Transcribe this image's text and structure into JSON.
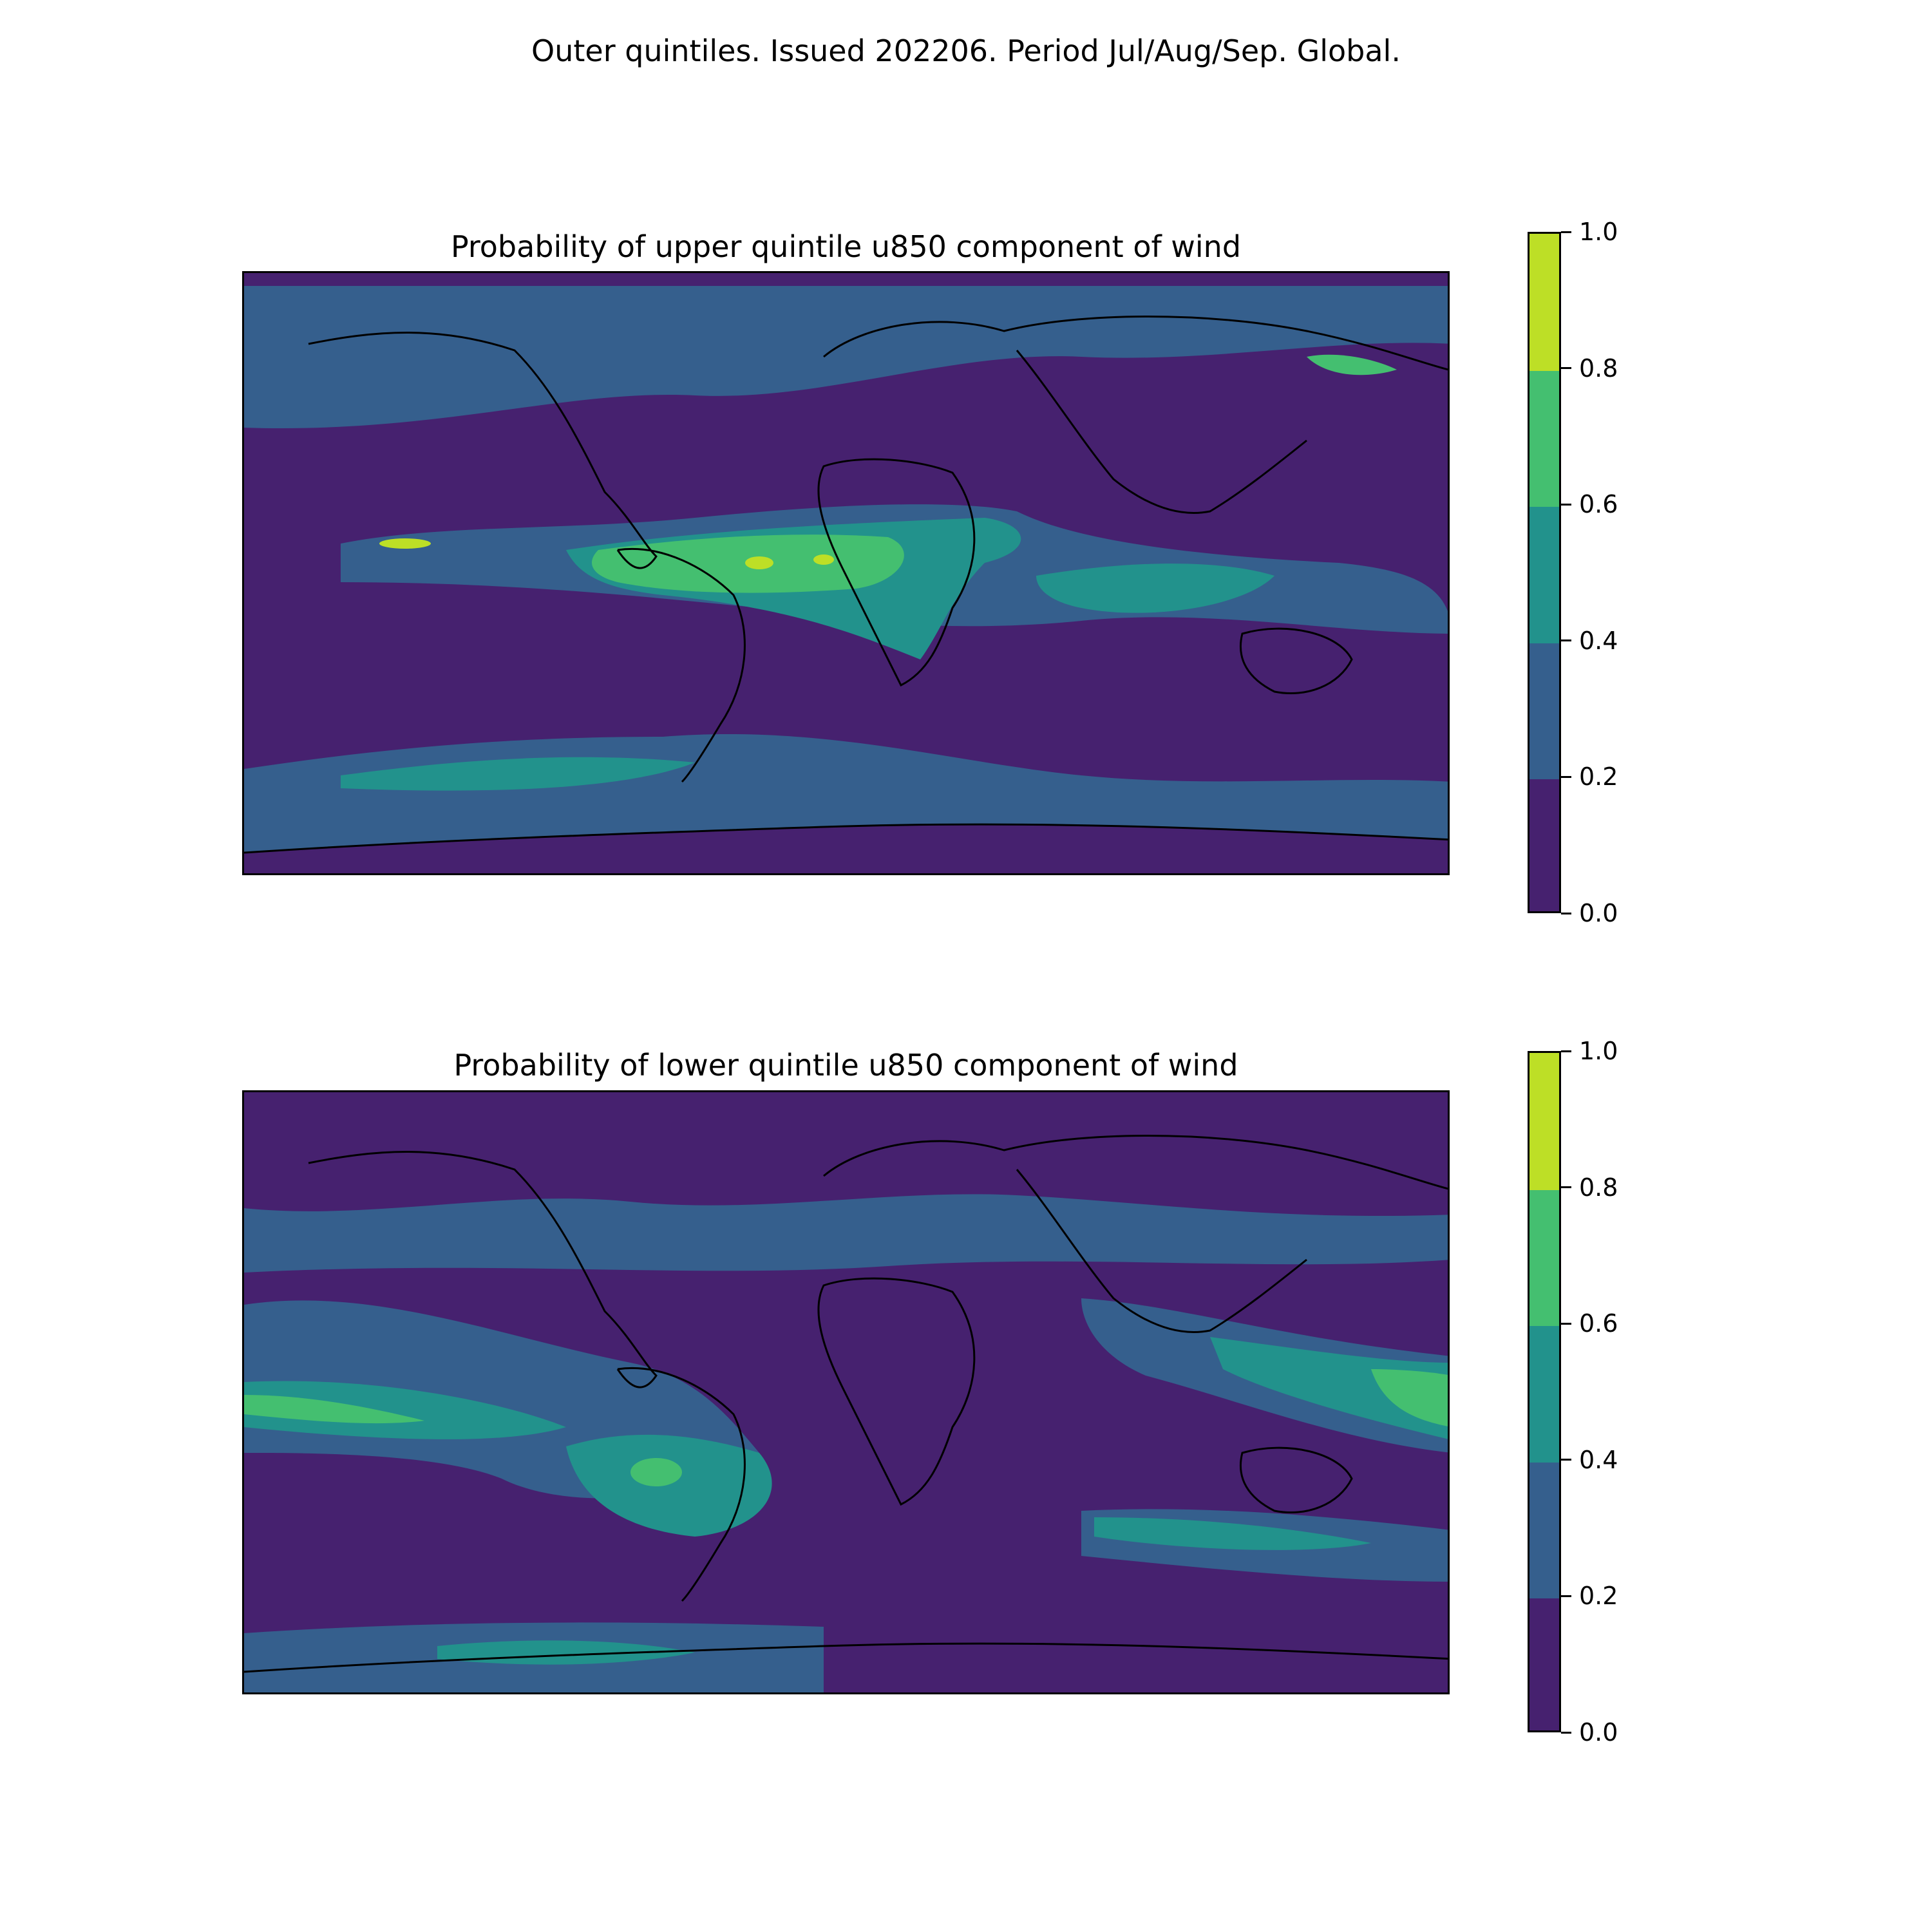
{
  "figure": {
    "suptitle": "Outer quintiles. Issued 202206. Period Jul/Aug/Sep. Global."
  },
  "colormap": {
    "name": "viridis",
    "levels": [
      0.0,
      0.2,
      0.4,
      0.6,
      0.8,
      1.0
    ],
    "colors": [
      "#46216f",
      "#355f8d",
      "#22928c",
      "#44bf70",
      "#bddf26"
    ],
    "tick_labels": [
      "0.0",
      "0.2",
      "0.4",
      "0.6",
      "0.8",
      "1.0"
    ]
  },
  "panels": [
    {
      "title": "Probability of upper quintile u850 component of wind",
      "variable": "u850",
      "quintile": "upper",
      "base_category": "0.0-0.2"
    },
    {
      "title": "Probability of lower quintile u850 component of wind",
      "variable": "u850",
      "quintile": "lower",
      "base_category": "0.0-0.2"
    }
  ]
}
